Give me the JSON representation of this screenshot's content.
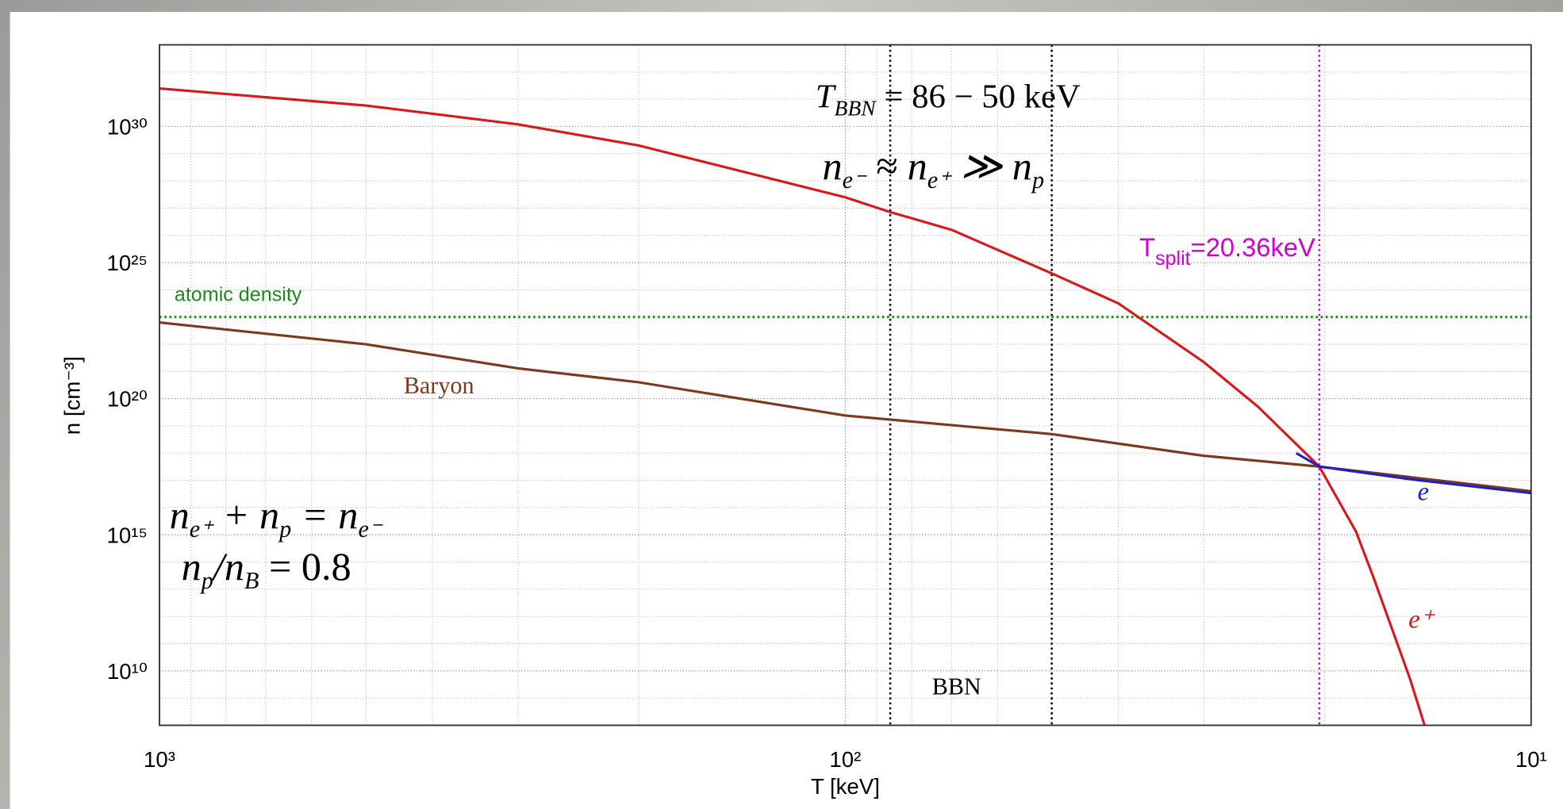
{
  "chart_data": {
    "type": "line",
    "xlabel": "T [keV]",
    "ylabel": "n [cm⁻³]",
    "xscale": "log",
    "yscale": "log",
    "grid": true,
    "xlim": [
      1000,
      10
    ],
    "ylim": [
      100000000.0,
      1e+33
    ],
    "xticks": [
      {
        "value": 1000,
        "label": "10³"
      },
      {
        "value": 100,
        "label": "10²"
      },
      {
        "value": 10,
        "label": "10¹"
      }
    ],
    "yticks": [
      {
        "value": 10000000000.0,
        "label": "10¹⁰"
      },
      {
        "value": 1000000000000000.0,
        "label": "10¹⁵"
      },
      {
        "value": 1e+20,
        "label": "10²⁰"
      },
      {
        "value": 1e+25,
        "label": "10²⁵"
      },
      {
        "value": 1e+30,
        "label": "10³⁰"
      }
    ],
    "series": [
      {
        "name": "e⁺",
        "color": "#d7191c",
        "x": [
          1000,
          500,
          300,
          200,
          100,
          86,
          70,
          50,
          40,
          30,
          25,
          20.36,
          18,
          17,
          15,
          14.3
        ],
        "values": [
          2.5e+31,
          5.9e+30,
          1.2e+30,
          2e+29,
          2.5e+27,
          7.2e+26,
          1.6e+26,
          4e+24,
          3.2e+23,
          2.2e+21,
          5e+19,
          3.2e+17,
          1300000000000000.0,
          30000000000000.0,
          4700000000.0,
          100000000.0
        ]
      },
      {
        "name": "Baryon",
        "color": "#7b3a1e",
        "x": [
          1000,
          500,
          300,
          200,
          100,
          50,
          30,
          20.36,
          10
        ],
        "values": [
          6.3e+22,
          1e+22,
          1.3e+21,
          4e+20,
          2.4e+19,
          5e+18,
          8e+17,
          3.2e+17,
          4e+16
        ]
      },
      {
        "name": "e",
        "color": "#2020c8",
        "x": [
          22,
          20.36,
          15,
          10
        ],
        "values": [
          1e+18,
          3.2e+17,
          1.1e+17,
          3.4e+16
        ]
      }
    ],
    "hlines": [
      {
        "name": "atomic density",
        "value": 1e+23,
        "color": "#1a8a1a"
      }
    ],
    "vlines": [
      {
        "value": 86,
        "color": "#000000"
      },
      {
        "value": 50,
        "color": "#000000"
      },
      {
        "value": 20.36,
        "color": "#d000d0"
      }
    ],
    "annotations": [
      {
        "parts": [
          "T",
          "BBN",
          " = 86 − 50 keV"
        ]
      },
      {
        "parts": [
          "n",
          "e⁻",
          " ≈ n",
          "e⁺",
          " ≫ n",
          "p"
        ]
      },
      {
        "parts": [
          "T",
          "split",
          "=20.36keV"
        ]
      },
      {
        "parts": [
          "n",
          "e⁺",
          " + n",
          "p",
          " = n",
          "e⁻"
        ]
      },
      {
        "parts": [
          "n",
          "p",
          "/n",
          "B",
          " = 0.8"
        ]
      },
      {
        "parts": [
          "BBN"
        ]
      }
    ]
  }
}
